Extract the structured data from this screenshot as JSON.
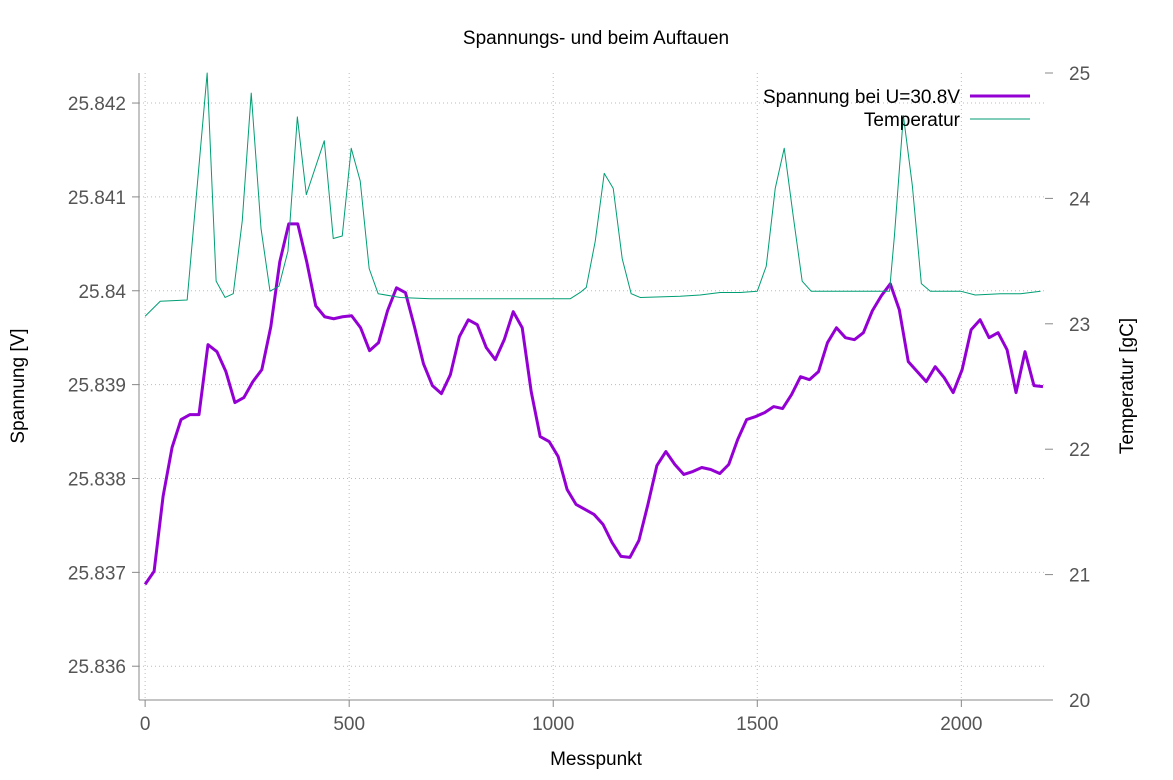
{
  "chart_data": {
    "type": "line",
    "title": "Spannungs- und beim Auftauen",
    "xlabel": "Messpunkt",
    "ylabel": "Spannung [V]",
    "y2label": "Temperatur [gC]",
    "xlim": [
      -15,
      2205
    ],
    "ylim": [
      25.83564,
      25.84232
    ],
    "y2lim": [
      20,
      25
    ],
    "xticks": [
      0,
      500,
      1000,
      1500,
      2000
    ],
    "yticks": [
      25.836,
      25.837,
      25.838,
      25.839,
      25.84,
      25.841,
      25.842
    ],
    "y2ticks": [
      20,
      21,
      22,
      23,
      24,
      25
    ],
    "grid": true,
    "legend": "top right",
    "x": [
      0,
      22,
      44,
      66,
      88,
      110,
      132,
      154,
      176,
      198,
      220,
      242,
      264,
      286,
      308,
      330,
      352,
      374,
      396,
      418,
      440,
      462,
      484,
      506,
      528,
      550,
      572,
      594,
      616,
      638,
      660,
      682,
      704,
      726,
      748,
      770,
      792,
      814,
      836,
      858,
      880,
      902,
      924,
      946,
      968,
      990,
      1012,
      1034,
      1056,
      1078,
      1100,
      1122,
      1144,
      1166,
      1188,
      1210,
      1232,
      1254,
      1276,
      1298,
      1320,
      1342,
      1364,
      1386,
      1408,
      1430,
      1452,
      1474,
      1496,
      1518,
      1540,
      1562,
      1584,
      1606,
      1628,
      1650,
      1672,
      1694,
      1716,
      1738,
      1760,
      1782,
      1804,
      1826,
      1848,
      1870,
      1892,
      1914,
      1936,
      1958,
      1980,
      2002,
      2024,
      2046,
      2068,
      2090,
      2112,
      2134,
      2156,
      2178,
      2200
    ],
    "series": [
      {
        "name": "Spannung bei U=30.8V",
        "color": "#9400d3",
        "width": 3,
        "values": [
          25.836872,
          25.837011,
          25.837809,
          25.83833,
          25.838628,
          25.838681,
          25.838681,
          25.839426,
          25.839351,
          25.839138,
          25.838809,
          25.838862,
          25.839032,
          25.83916,
          25.839617,
          25.840309,
          25.840713,
          25.840713,
          25.840309,
          25.83984,
          25.839723,
          25.839702,
          25.839723,
          25.839734,
          25.839606,
          25.839362,
          25.839447,
          25.839787,
          25.840032,
          25.839979,
          25.839617,
          25.839223,
          25.838989,
          25.838904,
          25.839106,
          25.839511,
          25.839691,
          25.839638,
          25.839394,
          25.839266,
          25.839479,
          25.839777,
          25.839606,
          25.838926,
          25.838447,
          25.838394,
          25.838234,
          25.837883,
          25.837723,
          25.83767,
          25.837617,
          25.837511,
          25.837319,
          25.83717,
          25.83716,
          25.83734,
          25.837723,
          25.838138,
          25.838287,
          25.838149,
          25.838043,
          25.838074,
          25.838117,
          25.838096,
          25.838053,
          25.838149,
          25.838415,
          25.838628,
          25.83866,
          25.838702,
          25.838766,
          25.838745,
          25.838894,
          25.839085,
          25.839053,
          25.839138,
          25.839447,
          25.839606,
          25.8395,
          25.839479,
          25.839553,
          25.839787,
          25.839947,
          25.840074,
          25.839798,
          25.839245,
          25.839138,
          25.839032,
          25.839191,
          25.839074,
          25.838915,
          25.83916,
          25.839585,
          25.839691,
          25.8395,
          25.839553,
          25.839372,
          25.838915,
          25.839351,
          25.838989,
          25.838979
        ]
      },
      {
        "name": "Temperatur",
        "color": "#009e73",
        "width": 1,
        "axis": "y2",
        "x": [
          0,
          37,
          103,
          152,
          174,
          196,
          216,
          238,
          260,
          284,
          306,
          328,
          350,
          373,
          395,
          439,
          461,
          483,
          505,
          527,
          549,
          571,
          625,
          699,
          870,
          1042,
          1066,
          1081,
          1103,
          1125,
          1147,
          1169,
          1191,
          1213,
          1311,
          1360,
          1409,
          1458,
          1500,
          1522,
          1544,
          1566,
          1588,
          1610,
          1632,
          1679,
          1801,
          1824,
          1836,
          1858,
          1880,
          1902,
          1924,
          1998,
          2034,
          2096,
          2145,
          2194
        ],
        "values": [
          23.06,
          23.18,
          23.19,
          25.0,
          23.34,
          23.21,
          23.24,
          23.82,
          24.84,
          23.76,
          23.26,
          23.3,
          23.58,
          24.65,
          24.03,
          24.46,
          23.68,
          23.7,
          24.4,
          24.14,
          23.44,
          23.24,
          23.21,
          23.2,
          23.2,
          23.2,
          23.25,
          23.29,
          23.66,
          24.2,
          24.08,
          23.52,
          23.24,
          23.21,
          23.22,
          23.23,
          23.25,
          23.25,
          23.26,
          23.46,
          24.08,
          24.4,
          23.86,
          23.34,
          23.26,
          23.26,
          23.26,
          23.26,
          23.7,
          24.66,
          24.1,
          23.32,
          23.26,
          23.26,
          23.23,
          23.24,
          23.24,
          23.26
        ]
      }
    ]
  }
}
